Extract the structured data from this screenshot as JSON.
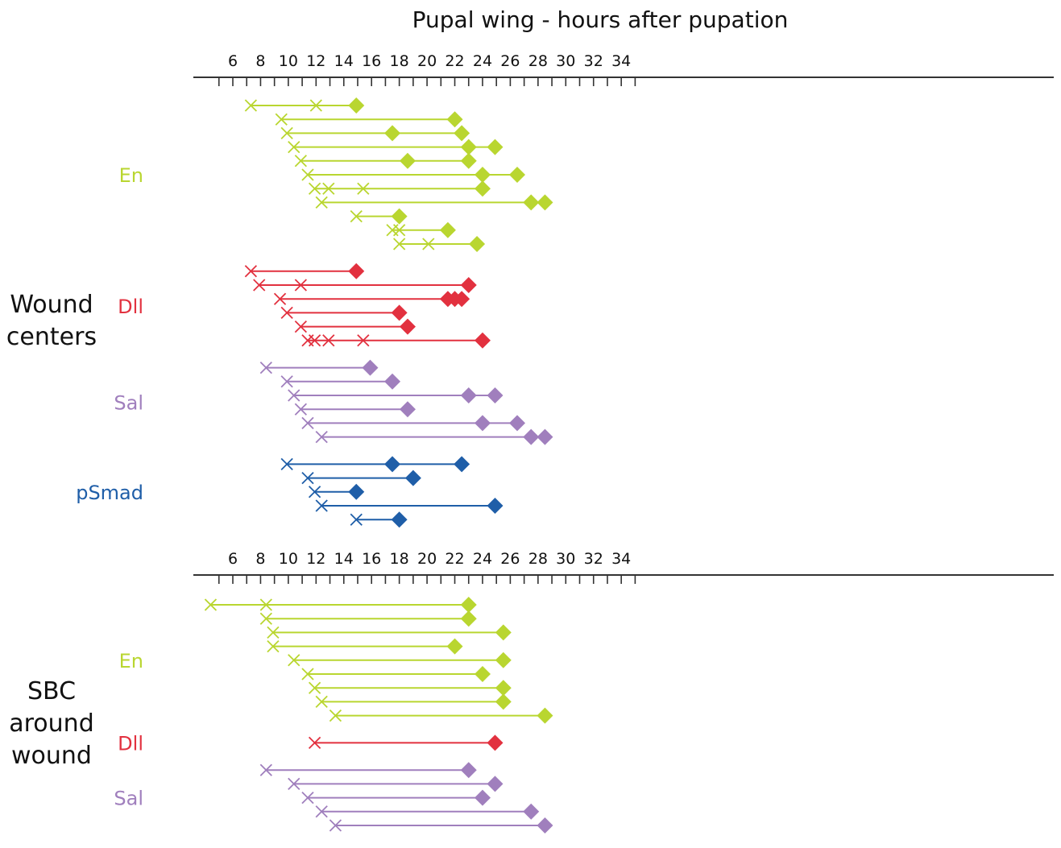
{
  "chart_data": {
    "type": "timeline",
    "title": "Pupal wing - hours after pupation",
    "x_ticks": [
      6,
      8,
      10,
      12,
      14,
      16,
      18,
      20,
      22,
      24,
      26,
      28,
      30,
      32,
      34
    ],
    "xlim": [
      4,
      35
    ],
    "colors": {
      "En": "#b9d630",
      "Dll": "#e2313f",
      "Sal": "#a07fbd",
      "pSmad": "#1f5ea8",
      "axis": "#333333",
      "text": "#111111"
    },
    "panels": [
      {
        "label": "Wound centers",
        "label_lines": [
          "Wound",
          "centers"
        ],
        "groups": [
          {
            "name": "En",
            "color_key": "En",
            "tracks": [
              {
                "x": [
                  7.3,
                  12,
                  14.9
                ],
                "p": [
                  0,
                  0,
                  1
                ]
              },
              {
                "x": [
                  9.5,
                  22.0
                ],
                "p": [
                  0,
                  1
                ]
              },
              {
                "x": [
                  9.9,
                  17.5,
                  22.5
                ],
                "p": [
                  0,
                  1,
                  1
                ]
              },
              {
                "x": [
                  10.4,
                  23.0,
                  24.9
                ],
                "p": [
                  0,
                  1,
                  1
                ]
              },
              {
                "x": [
                  10.9,
                  18.6,
                  23.0
                ],
                "p": [
                  0,
                  1,
                  1
                ]
              },
              {
                "x": [
                  11.4,
                  24.0,
                  26.5
                ],
                "p": [
                  0,
                  1,
                  1
                ]
              },
              {
                "x": [
                  11.9,
                  12.9,
                  15.4,
                  24.0
                ],
                "p": [
                  0,
                  0,
                  0,
                  1
                ]
              },
              {
                "x": [
                  12.4,
                  27.5,
                  28.5
                ],
                "p": [
                  0,
                  1,
                  1
                ]
              },
              {
                "x": [
                  14.9,
                  18.0
                ],
                "p": [
                  0,
                  1
                ]
              },
              {
                "x": [
                  17.5,
                  18.0,
                  21.5
                ],
                "p": [
                  0,
                  0,
                  1
                ]
              },
              {
                "x": [
                  18.0,
                  20.1,
                  23.6
                ],
                "p": [
                  0,
                  0,
                  1
                ]
              }
            ]
          },
          {
            "name": "Dll",
            "color_key": "Dll",
            "tracks": [
              {
                "x": [
                  7.3,
                  14.9
                ],
                "p": [
                  0,
                  1
                ]
              },
              {
                "x": [
                  7.9,
                  10.9,
                  23.0
                ],
                "p": [
                  0,
                  0,
                  1
                ]
              },
              {
                "x": [
                  9.4,
                  21.5,
                  22.0,
                  22.5
                ],
                "p": [
                  0,
                  1,
                  1,
                  1
                ]
              },
              {
                "x": [
                  9.9,
                  18.0
                ],
                "p": [
                  0,
                  1
                ]
              },
              {
                "x": [
                  10.9,
                  18.6
                ],
                "p": [
                  0,
                  1
                ]
              },
              {
                "x": [
                  11.4,
                  11.9,
                  12.9,
                  15.4,
                  24.0
                ],
                "p": [
                  0,
                  0,
                  0,
                  0,
                  1
                ]
              }
            ]
          },
          {
            "name": "Sal",
            "color_key": "Sal",
            "tracks": [
              {
                "x": [
                  8.4,
                  15.9
                ],
                "p": [
                  0,
                  1
                ]
              },
              {
                "x": [
                  9.9,
                  17.5
                ],
                "p": [
                  0,
                  1
                ]
              },
              {
                "x": [
                  10.4,
                  23.0,
                  24.9
                ],
                "p": [
                  0,
                  1,
                  1
                ]
              },
              {
                "x": [
                  10.9,
                  18.6
                ],
                "p": [
                  0,
                  1
                ]
              },
              {
                "x": [
                  11.4,
                  24.0,
                  26.5
                ],
                "p": [
                  0,
                  1,
                  1
                ]
              },
              {
                "x": [
                  12.4,
                  27.5,
                  28.5
                ],
                "p": [
                  0,
                  1,
                  1
                ]
              }
            ]
          },
          {
            "name": "pSmad",
            "color_key": "pSmad",
            "tracks": [
              {
                "x": [
                  9.9,
                  17.5,
                  22.5
                ],
                "p": [
                  0,
                  1,
                  1
                ]
              },
              {
                "x": [
                  11.4,
                  19.0
                ],
                "p": [
                  0,
                  1
                ]
              },
              {
                "x": [
                  11.9,
                  14.9
                ],
                "p": [
                  0,
                  1
                ]
              },
              {
                "x": [
                  12.4,
                  24.9
                ],
                "p": [
                  0,
                  1
                ]
              },
              {
                "x": [
                  14.9,
                  18.0
                ],
                "p": [
                  0,
                  1
                ]
              }
            ]
          }
        ]
      },
      {
        "label": "SBC around wound",
        "label_lines": [
          "SBC",
          "around",
          "wound"
        ],
        "groups": [
          {
            "name": "En",
            "color_key": "En",
            "tracks": [
              {
                "x": [
                  4.4,
                  8.4,
                  23.0
                ],
                "p": [
                  0,
                  0,
                  1
                ]
              },
              {
                "x": [
                  8.4,
                  23.0
                ],
                "p": [
                  0,
                  1
                ]
              },
              {
                "x": [
                  8.9,
                  25.5
                ],
                "p": [
                  0,
                  1
                ]
              },
              {
                "x": [
                  8.9,
                  22.0
                ],
                "p": [
                  0,
                  1
                ]
              },
              {
                "x": [
                  10.4,
                  25.5
                ],
                "p": [
                  0,
                  1
                ]
              },
              {
                "x": [
                  11.4,
                  24.0
                ],
                "p": [
                  0,
                  1
                ]
              },
              {
                "x": [
                  11.9,
                  25.5
                ],
                "p": [
                  0,
                  1
                ]
              },
              {
                "x": [
                  12.4,
                  25.5
                ],
                "p": [
                  0,
                  1
                ]
              },
              {
                "x": [
                  13.4,
                  28.5
                ],
                "p": [
                  0,
                  1
                ]
              }
            ]
          },
          {
            "name": "Dll",
            "color_key": "Dll",
            "tracks": [
              {
                "x": [
                  11.9,
                  24.9
                ],
                "p": [
                  0,
                  1
                ]
              }
            ]
          },
          {
            "name": "Sal",
            "color_key": "Sal",
            "tracks": [
              {
                "x": [
                  8.4,
                  23.0
                ],
                "p": [
                  0,
                  1
                ]
              },
              {
                "x": [
                  10.4,
                  24.9
                ],
                "p": [
                  0,
                  1
                ]
              },
              {
                "x": [
                  11.4,
                  24.0
                ],
                "p": [
                  0,
                  1
                ]
              },
              {
                "x": [
                  12.4,
                  27.5
                ],
                "p": [
                  0,
                  1
                ]
              },
              {
                "x": [
                  13.4,
                  28.5
                ],
                "p": [
                  0,
                  1
                ]
              }
            ]
          }
        ]
      }
    ]
  }
}
